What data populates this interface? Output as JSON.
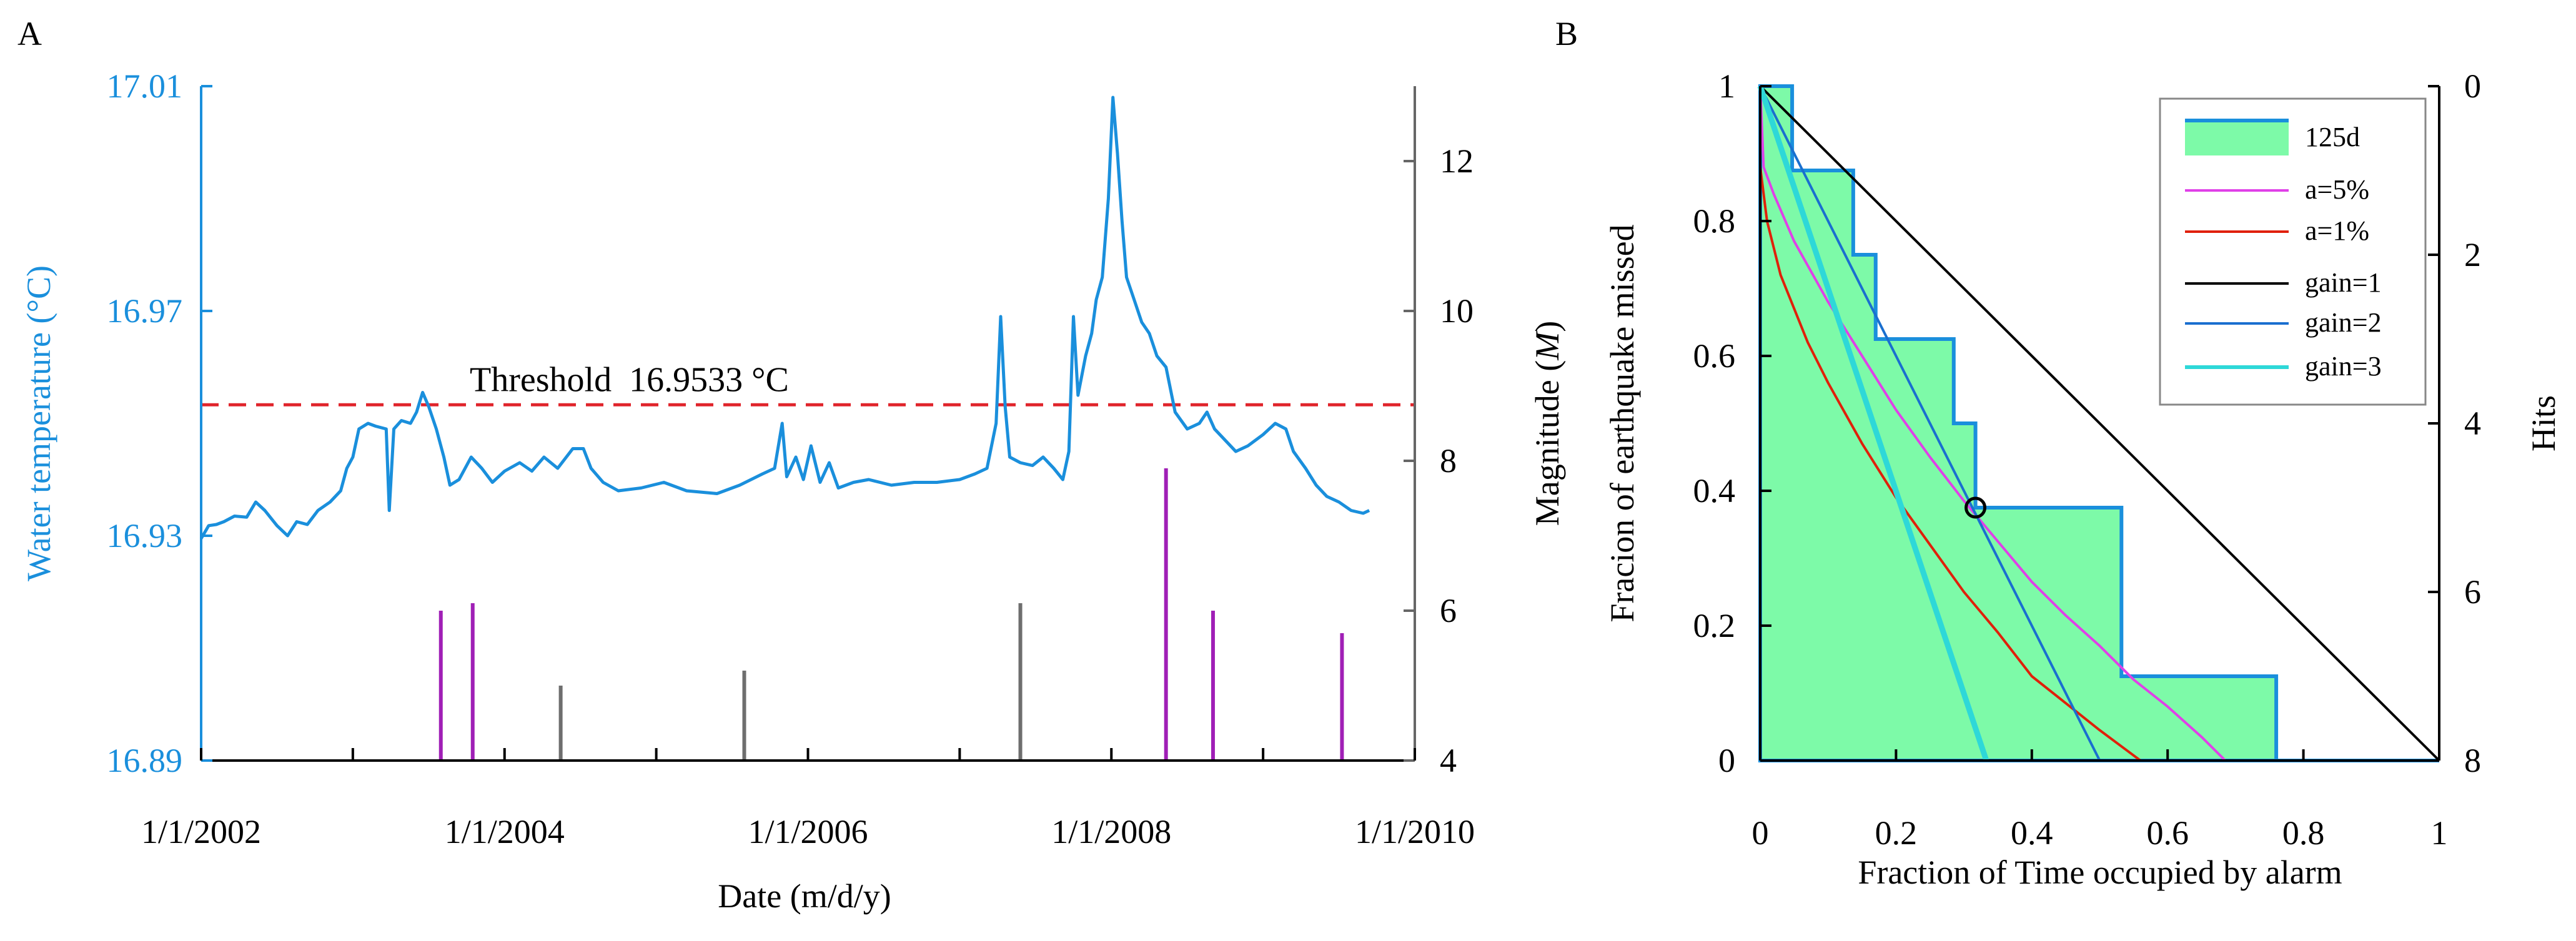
{
  "chart_data": [
    {
      "panel_label": "A",
      "type": "line",
      "xlabel": "Date (m/d/y)",
      "ylabel_left": "Water temperature (°C)",
      "ylabel_right_prefix": "Magnitude (",
      "ylabel_right_symbol": "M",
      "ylabel_right_suffix": ")",
      "x_range_years": [
        2002,
        2010
      ],
      "x_ticks": [
        {
          "year": 2002,
          "label": "1/1/2002"
        },
        {
          "year": 2004,
          "label": "1/1/2004"
        },
        {
          "year": 2006,
          "label": "1/1/2006"
        },
        {
          "year": 2008,
          "label": "1/1/2008"
        },
        {
          "year": 2010,
          "label": "1/1/2010"
        }
      ],
      "x_minor_tick_years": [
        2003,
        2005,
        2007,
        2009
      ],
      "left_axis": {
        "min": 16.89,
        "max": 17.01,
        "ticks": [
          {
            "v": 16.89,
            "label": "16.89"
          },
          {
            "v": 16.93,
            "label": "16.93"
          },
          {
            "v": 16.97,
            "label": "16.97"
          },
          {
            "v": 17.01,
            "label": "17.01"
          }
        ]
      },
      "right_axis": {
        "min": 4,
        "max": 13,
        "ticks": [
          {
            "v": 4,
            "label": "4"
          },
          {
            "v": 6,
            "label": "6"
          },
          {
            "v": 8,
            "label": "8"
          },
          {
            "v": 10,
            "label": "10"
          },
          {
            "v": 12,
            "label": "12"
          }
        ]
      },
      "threshold": {
        "value": 16.9533,
        "label": "Threshold  16.9533 °C",
        "color": "#e0242b"
      },
      "series_color": "#1a8fdc",
      "temperature_series": {
        "name": "Water temperature",
        "points": [
          [
            2002.0,
            16.9295
          ],
          [
            2002.05,
            16.9318
          ],
          [
            2002.1,
            16.932
          ],
          [
            2002.15,
            16.9325
          ],
          [
            2002.22,
            16.9335
          ],
          [
            2002.3,
            16.9333
          ],
          [
            2002.36,
            16.936
          ],
          [
            2002.42,
            16.9345
          ],
          [
            2002.5,
            16.9318
          ],
          [
            2002.57,
            16.93
          ],
          [
            2002.63,
            16.9325
          ],
          [
            2002.7,
            16.932
          ],
          [
            2002.77,
            16.9345
          ],
          [
            2002.85,
            16.936
          ],
          [
            2002.92,
            16.938
          ],
          [
            2002.96,
            16.942
          ],
          [
            2003.0,
            16.944
          ],
          [
            2003.04,
            16.949
          ],
          [
            2003.1,
            16.95
          ],
          [
            2003.15,
            16.9495
          ],
          [
            2003.22,
            16.949
          ],
          [
            2003.24,
            16.9345
          ],
          [
            2003.27,
            16.949
          ],
          [
            2003.32,
            16.9505
          ],
          [
            2003.38,
            16.95
          ],
          [
            2003.42,
            16.952
          ],
          [
            2003.46,
            16.9555
          ],
          [
            2003.5,
            16.953
          ],
          [
            2003.55,
            16.949
          ],
          [
            2003.6,
            16.944
          ],
          [
            2003.64,
            16.939
          ],
          [
            2003.7,
            16.94
          ],
          [
            2003.78,
            16.944
          ],
          [
            2003.85,
            16.942
          ],
          [
            2003.92,
            16.9395
          ],
          [
            2004.0,
            16.9415
          ],
          [
            2004.1,
            16.943
          ],
          [
            2004.18,
            16.9415
          ],
          [
            2004.26,
            16.944
          ],
          [
            2004.35,
            16.942
          ],
          [
            2004.45,
            16.9455
          ],
          [
            2004.52,
            16.9455
          ],
          [
            2004.57,
            16.942
          ],
          [
            2004.65,
            16.9395
          ],
          [
            2004.75,
            16.938
          ],
          [
            2004.9,
            16.9385
          ],
          [
            2005.05,
            16.9395
          ],
          [
            2005.2,
            16.938
          ],
          [
            2005.4,
            16.9375
          ],
          [
            2005.55,
            16.939
          ],
          [
            2005.7,
            16.941
          ],
          [
            2005.78,
            16.942
          ],
          [
            2005.83,
            16.95
          ],
          [
            2005.86,
            16.9405
          ],
          [
            2005.92,
            16.944
          ],
          [
            2005.97,
            16.94
          ],
          [
            2006.02,
            16.946
          ],
          [
            2006.08,
            16.9395
          ],
          [
            2006.14,
            16.943
          ],
          [
            2006.2,
            16.9385
          ],
          [
            2006.3,
            16.9395
          ],
          [
            2006.4,
            16.94
          ],
          [
            2006.55,
            16.939
          ],
          [
            2006.7,
            16.9395
          ],
          [
            2006.85,
            16.9395
          ],
          [
            2007.0,
            16.94
          ],
          [
            2007.1,
            16.941
          ],
          [
            2007.18,
            16.942
          ],
          [
            2007.24,
            16.95
          ],
          [
            2007.27,
            16.969
          ],
          [
            2007.3,
            16.953
          ],
          [
            2007.33,
            16.944
          ],
          [
            2007.4,
            16.943
          ],
          [
            2007.48,
            16.9425
          ],
          [
            2007.55,
            16.944
          ],
          [
            2007.62,
            16.942
          ],
          [
            2007.68,
            16.94
          ],
          [
            2007.72,
            16.945
          ],
          [
            2007.75,
            16.969
          ],
          [
            2007.78,
            16.955
          ],
          [
            2007.83,
            16.962
          ],
          [
            2007.87,
            16.966
          ],
          [
            2007.9,
            16.972
          ],
          [
            2007.94,
            16.976
          ],
          [
            2007.98,
            16.99
          ],
          [
            2008.01,
            17.008
          ],
          [
            2008.04,
            16.998
          ],
          [
            2008.07,
            16.986
          ],
          [
            2008.1,
            16.976
          ],
          [
            2008.15,
            16.972
          ],
          [
            2008.2,
            16.968
          ],
          [
            2008.25,
            16.966
          ],
          [
            2008.3,
            16.962
          ],
          [
            2008.36,
            16.96
          ],
          [
            2008.42,
            16.952
          ],
          [
            2008.5,
            16.949
          ],
          [
            2008.58,
            16.95
          ],
          [
            2008.63,
            16.952
          ],
          [
            2008.68,
            16.949
          ],
          [
            2008.75,
            16.947
          ],
          [
            2008.82,
            16.945
          ],
          [
            2008.9,
            16.946
          ],
          [
            2009.0,
            16.948
          ],
          [
            2009.08,
            16.95
          ],
          [
            2009.15,
            16.949
          ],
          [
            2009.2,
            16.945
          ],
          [
            2009.28,
            16.942
          ],
          [
            2009.35,
            16.939
          ],
          [
            2009.42,
            16.937
          ],
          [
            2009.5,
            16.936
          ],
          [
            2009.58,
            16.9345
          ],
          [
            2009.66,
            16.934
          ],
          [
            2009.7,
            16.9345
          ]
        ]
      },
      "earthquakes": [
        {
          "year": 2003.58,
          "magnitude": 6.0,
          "color": "#a01fb6"
        },
        {
          "year": 2003.79,
          "magnitude": 6.1,
          "color": "#a01fb6"
        },
        {
          "year": 2004.37,
          "magnitude": 5.0,
          "color": "#6e6e6e"
        },
        {
          "year": 2005.58,
          "magnitude": 5.2,
          "color": "#6e6e6e"
        },
        {
          "year": 2007.4,
          "magnitude": 6.1,
          "color": "#6e6e6e"
        },
        {
          "year": 2008.36,
          "magnitude": 7.9,
          "color": "#a01fb6"
        },
        {
          "year": 2008.67,
          "magnitude": 6.0,
          "color": "#a01fb6"
        },
        {
          "year": 2009.52,
          "magnitude": 5.7,
          "color": "#a01fb6"
        }
      ]
    },
    {
      "panel_label": "B",
      "type": "line",
      "xlabel": "Fraction of Time occupied by alarm",
      "ylabel_left": "Fracion of earthquake missed",
      "ylabel_right": "Hits",
      "xlim": [
        0,
        1
      ],
      "ylim": [
        0,
        1
      ],
      "x_ticks": [
        {
          "v": 0,
          "label": "0"
        },
        {
          "v": 0.2,
          "label": "0.2"
        },
        {
          "v": 0.4,
          "label": "0.4"
        },
        {
          "v": 0.6,
          "label": "0.6"
        },
        {
          "v": 0.8,
          "label": "0.8"
        },
        {
          "v": 1,
          "label": "1"
        }
      ],
      "y_ticks": [
        {
          "v": 0,
          "label": "0"
        },
        {
          "v": 0.2,
          "label": "0.2"
        },
        {
          "v": 0.4,
          "label": "0.4"
        },
        {
          "v": 0.6,
          "label": "0.6"
        },
        {
          "v": 0.8,
          "label": "0.8"
        },
        {
          "v": 1,
          "label": "1"
        }
      ],
      "right_ticks": [
        {
          "v": 0,
          "label": "0"
        },
        {
          "v": 2,
          "label": "2"
        },
        {
          "v": 4,
          "label": "4"
        },
        {
          "v": 6,
          "label": "6"
        },
        {
          "v": 8,
          "label": "8"
        }
      ],
      "hits_range": [
        0,
        8
      ],
      "molchan_step": {
        "name": "125d",
        "fill": "#7dfaa8",
        "stroke": "#1a8fdc",
        "points": [
          [
            0,
            1
          ],
          [
            0.047,
            1
          ],
          [
            0.047,
            0.875
          ],
          [
            0.137,
            0.875
          ],
          [
            0.137,
            0.75
          ],
          [
            0.17,
            0.75
          ],
          [
            0.17,
            0.625
          ],
          [
            0.285,
            0.625
          ],
          [
            0.285,
            0.5
          ],
          [
            0.317,
            0.5
          ],
          [
            0.317,
            0.375
          ],
          [
            0.532,
            0.375
          ],
          [
            0.532,
            0.125
          ],
          [
            0.76,
            0.125
          ],
          [
            0.76,
            0
          ],
          [
            1,
            0
          ]
        ]
      },
      "series": [
        {
          "name": "a=5%",
          "color": "#e040e8",
          "width": 4,
          "points": [
            [
              0,
              1
            ],
            [
              0.005,
              0.88
            ],
            [
              0.02,
              0.84
            ],
            [
              0.05,
              0.77
            ],
            [
              0.1,
              0.68
            ],
            [
              0.15,
              0.6
            ],
            [
              0.2,
              0.52
            ],
            [
              0.25,
              0.45
            ],
            [
              0.3,
              0.385
            ],
            [
              0.35,
              0.325
            ],
            [
              0.4,
              0.265
            ],
            [
              0.45,
              0.215
            ],
            [
              0.5,
              0.17
            ],
            [
              0.55,
              0.12
            ],
            [
              0.6,
              0.08
            ],
            [
              0.65,
              0.035
            ],
            [
              0.685,
              0
            ]
          ]
        },
        {
          "name": "a=1%",
          "color": "#e0200a",
          "width": 4,
          "points": [
            [
              0,
              0.88
            ],
            [
              0.01,
              0.8
            ],
            [
              0.03,
              0.72
            ],
            [
              0.07,
              0.62
            ],
            [
              0.1,
              0.56
            ],
            [
              0.15,
              0.47
            ],
            [
              0.2,
              0.39
            ],
            [
              0.25,
              0.32
            ],
            [
              0.3,
              0.25
            ],
            [
              0.35,
              0.19
            ],
            [
              0.4,
              0.125
            ],
            [
              0.45,
              0.085
            ],
            [
              0.5,
              0.045
            ],
            [
              0.54,
              0.015
            ],
            [
              0.56,
              0
            ]
          ]
        },
        {
          "name": "gain=1",
          "color": "#000000",
          "width": 4,
          "points": [
            [
              0,
              1
            ],
            [
              1,
              0
            ]
          ]
        },
        {
          "name": "gain=2",
          "color": "#1a6fcf",
          "width": 4,
          "points": [
            [
              0,
              1
            ],
            [
              0.5,
              0
            ]
          ]
        },
        {
          "name": "gain=3",
          "color": "#2ed8d8",
          "width": 9,
          "points": [
            [
              0,
              1
            ],
            [
              0.333,
              0
            ]
          ]
        }
      ],
      "marker": {
        "x": 0.317,
        "y": 0.375,
        "shape": "open-circle"
      },
      "legend_position": "top-right"
    }
  ]
}
